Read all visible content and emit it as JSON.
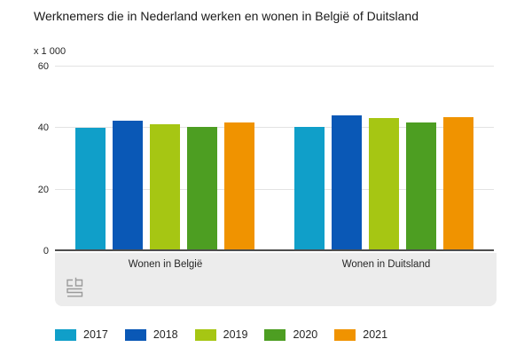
{
  "chart_data": {
    "type": "bar",
    "title": "Werknemers die in Nederland werken en wonen in België of Duitsland",
    "categories": [
      "Wonen in België",
      "Wonen in Duitsland"
    ],
    "series": [
      {
        "name": "2017",
        "color": "#109fc9",
        "values": [
          40.1,
          40.5
        ]
      },
      {
        "name": "2018",
        "color": "#0a58b6",
        "values": [
          42.3,
          44.2
        ]
      },
      {
        "name": "2019",
        "color": "#a6c613",
        "values": [
          41.2,
          43.2
        ]
      },
      {
        "name": "2020",
        "color": "#4d9e22",
        "values": [
          40.4,
          41.9
        ]
      },
      {
        "name": "2021",
        "color": "#f09300",
        "values": [
          41.7,
          43.7
        ]
      }
    ],
    "xlabel": "",
    "ylabel": "x 1 000",
    "ylim": [
      0,
      60
    ],
    "yticks": [
      0,
      20,
      40,
      60
    ],
    "grid": true,
    "legend_position": "bottom",
    "axis_line_color": "#4d4d4d",
    "band_color": "#ececec",
    "logo_name": "cbs-logo"
  }
}
